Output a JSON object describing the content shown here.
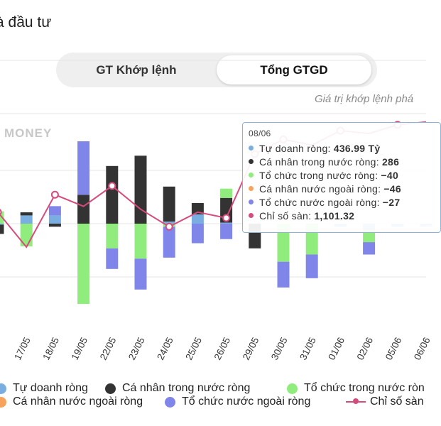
{
  "header": {
    "title": "à đầu tư"
  },
  "tabs": [
    {
      "label": "GT Khớp lệnh",
      "active": false
    },
    {
      "label": "Tổng GTGD",
      "active": true
    }
  ],
  "note": "Giá trị khớp lệnh phá",
  "watermark": "MONEY",
  "tooltip": {
    "date": "08/06",
    "rows": [
      {
        "label": "Tự doanh ròng:",
        "value": "436.99 Tỷ",
        "color": "#7aaee0"
      },
      {
        "label": "Cá nhân trong nước ròng:",
        "value": "286",
        "color": "#333333"
      },
      {
        "label": "Tổ chức trong nước ròng:",
        "value": "−40",
        "color": "#90ec7d"
      },
      {
        "label": "Cá nhân nước ngoài ròng:",
        "value": "−46",
        "color": "#f7a35c"
      },
      {
        "label": "Tổ chức nước ngoài ròng:",
        "value": "−27",
        "color": "#8085e9"
      },
      {
        "label": "Chỉ số sàn:",
        "value": "1,101.32",
        "color": "#d64b7d"
      }
    ]
  },
  "legend": [
    {
      "label": "Tự doanh ròng",
      "color": "#7aaee0",
      "kind": "dot"
    },
    {
      "label": "Cá nhân trong nước ròng",
      "color": "#333333",
      "kind": "dot"
    },
    {
      "label": "Tổ chức trong nước ròn",
      "color": "#90ec7d",
      "kind": "dot"
    },
    {
      "label": "Cá nhân nước ngoài ròng",
      "color": "#f7a35c",
      "kind": "dot"
    },
    {
      "label": "Tổ chức nước ngoài ròng",
      "color": "#8085e9",
      "kind": "dot"
    },
    {
      "label": "Chỉ số sàn",
      "color": "#d64b7d",
      "kind": "line"
    }
  ],
  "chart_data": {
    "type": "bar",
    "stacked": true,
    "categories": [
      "",
      "17/05",
      "18/05",
      "19/05",
      "22/05",
      "23/05",
      "24/05",
      "25/05",
      "26/05",
      "29/05",
      "30/05",
      "31/05",
      "01/06",
      "02/06",
      "05/06",
      "06/06"
    ],
    "series": [
      {
        "name": "Tự doanh ròng",
        "color": "#7aaee0",
        "values": [
          -5,
          40,
          40,
          0,
          0,
          0,
          10,
          45,
          5,
          0,
          0,
          0,
          -15,
          -30,
          -15,
          -15
        ]
      },
      {
        "name": "Cá nhân trong nước ròng",
        "color": "#333333",
        "values": [
          -45,
          15,
          -15,
          140,
          280,
          330,
          170,
          55,
          120,
          -120,
          0,
          0,
          0,
          0,
          0,
          0
        ]
      },
      {
        "name": "Tổ chức trong nước ròng",
        "color": "#90ec7d",
        "values": [
          60,
          -110,
          0,
          -390,
          -120,
          -170,
          -15,
          0,
          45,
          0,
          -185,
          -150,
          0,
          -60,
          0,
          0
        ]
      },
      {
        "name": "Cá nhân nước ngoài ròng",
        "color": "#f7a35c",
        "values": [
          0,
          0,
          0,
          0,
          0,
          0,
          0,
          0,
          0,
          0,
          0,
          0,
          0,
          0,
          0,
          0
        ]
      },
      {
        "name": "Tổ chức nước ngoài ròng",
        "color": "#8085e9",
        "values": [
          0,
          0,
          45,
          260,
          -100,
          -150,
          -150,
          -95,
          -75,
          0,
          -125,
          -115,
          0,
          -60,
          0,
          0
        ]
      }
    ],
    "index_line": {
      "name": "Chỉ số sàn",
      "color": "#d64b7d",
      "values": [
        1070,
        1058,
        1076,
        1072,
        1079,
        1071,
        1065,
        1070,
        1068,
        1090,
        1095,
        1093,
        1098,
        1097,
        1100,
        1101
      ]
    },
    "ylim": [
      -520,
      520
    ],
    "grid": true,
    "legend_position": "bottom"
  }
}
